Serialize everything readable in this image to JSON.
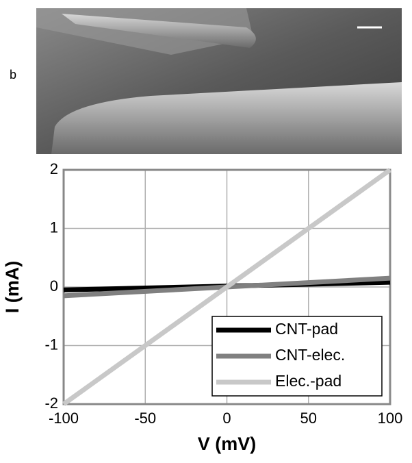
{
  "panel_label": "b",
  "chart_data": {
    "type": "line",
    "x_label": "V (mV)",
    "y_label": "I (mA)",
    "x": [
      -100,
      100
    ],
    "series": [
      {
        "name": "CNT-pad",
        "color": "#000000",
        "values": [
          -0.05,
          0.08
        ]
      },
      {
        "name": "CNT-elec.",
        "color": "#808080",
        "values": [
          -0.15,
          0.15
        ]
      },
      {
        "name": "Elec.-pad",
        "color": "#c8c8c8",
        "values": [
          -2,
          2
        ]
      }
    ],
    "xlim": [
      -100,
      100
    ],
    "xticks": [
      -100,
      -50,
      0,
      50,
      100
    ],
    "ylim": [
      -2,
      2
    ],
    "yticks": [
      -2,
      -1,
      0,
      1,
      2
    ],
    "grid": true,
    "legend": "lower right"
  }
}
